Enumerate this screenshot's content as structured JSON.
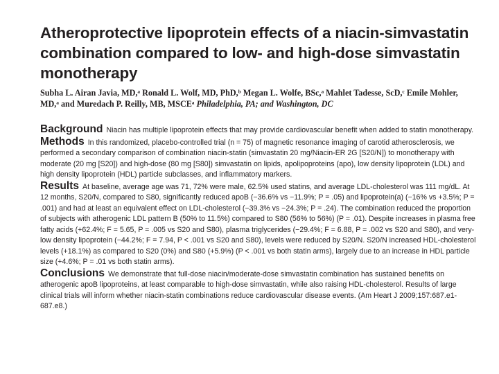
{
  "title": "Atheroprotective lipoprotein effects of a niacin-simvastatin combination compared to low- and high-dose simvastatin monotherapy",
  "authors": {
    "names": "Subha L. Airan Javia, MD,ᵃ Ronald L. Wolf, MD, PhD,ᵇ Megan L. Wolfe, BSc,ᵃ Mahlet Tadesse, ScD,ᶜ Emile Mohler, MD,ᵃ and Muredach P. Reilly, MB, MSCEᵃ",
    "location": "Philadelphia, PA; and Washington, DC"
  },
  "sections": {
    "background": {
      "heading": "Background",
      "text": "Niacin has multiple lipoprotein effects that may provide cardiovascular benefit when added to statin monotherapy."
    },
    "methods": {
      "heading": "Methods",
      "text": "In this randomized, placebo-controlled trial (n = 75) of magnetic resonance imaging of carotid atherosclerosis, we performed a secondary comparison of combination niacin-statin (simvastatin 20 mg/Niacin-ER 2G [S20/N]) to monotherapy with moderate (20 mg [S20]) and high-dose (80 mg [S80]) simvastatin on lipids, apolipoproteins (apo), low density lipoprotein (LDL) and high density lipoprotein (HDL) particle subclasses, and inflammatory markers."
    },
    "results": {
      "heading": "Results",
      "text": "At baseline, average age was 71, 72% were male, 62.5% used statins, and average LDL-cholesterol was 111 mg/dL. At 12 months, S20/N, compared to S80, significantly reduced apoB (−36.6% vs −11.9%; P = .05) and lipoprotein(a) (−16% vs +3.5%; P = .001) and had at least an equivalent effect on LDL-cholesterol (−39.3% vs −24.3%; P = .24). The combination reduced the proportion of subjects with atherogenic LDL pattern B (50% to 11.5%) compared to S80 (56% to 56%) (P = .01). Despite increases in plasma free fatty acids (+62.4%; F = 5.65, P = .005 vs S20 and S80), plasma triglycerides (−29.4%; F = 6.88, P = .002 vs S20 and S80), and very-low density lipoprotein (−44.2%; F = 7.94, P < .001 vs S20 and S80), levels were reduced by S20/N. S20/N increased HDL-cholesterol levels (+18.1%) as compared to S20 (0%) and S80 (+5.9%) (P < .001 vs both statin arms), largely due to an increase in HDL particle size (+4.6%; P = .01 vs both statin arms)."
    },
    "conclusions": {
      "heading": "Conclusions",
      "text": "We demonstrate that full-dose niacin/moderate-dose simvastatin combination has sustained benefits on atherogenic apoB lipoproteins, at least comparable to high-dose simvastatin, while also raising HDL-cholesterol. Results of large clinical trials will inform whether niacin-statin combinations reduce cardiovascular disease events. (Am Heart J 2009;157:687.e1-687.e8.)"
    }
  }
}
